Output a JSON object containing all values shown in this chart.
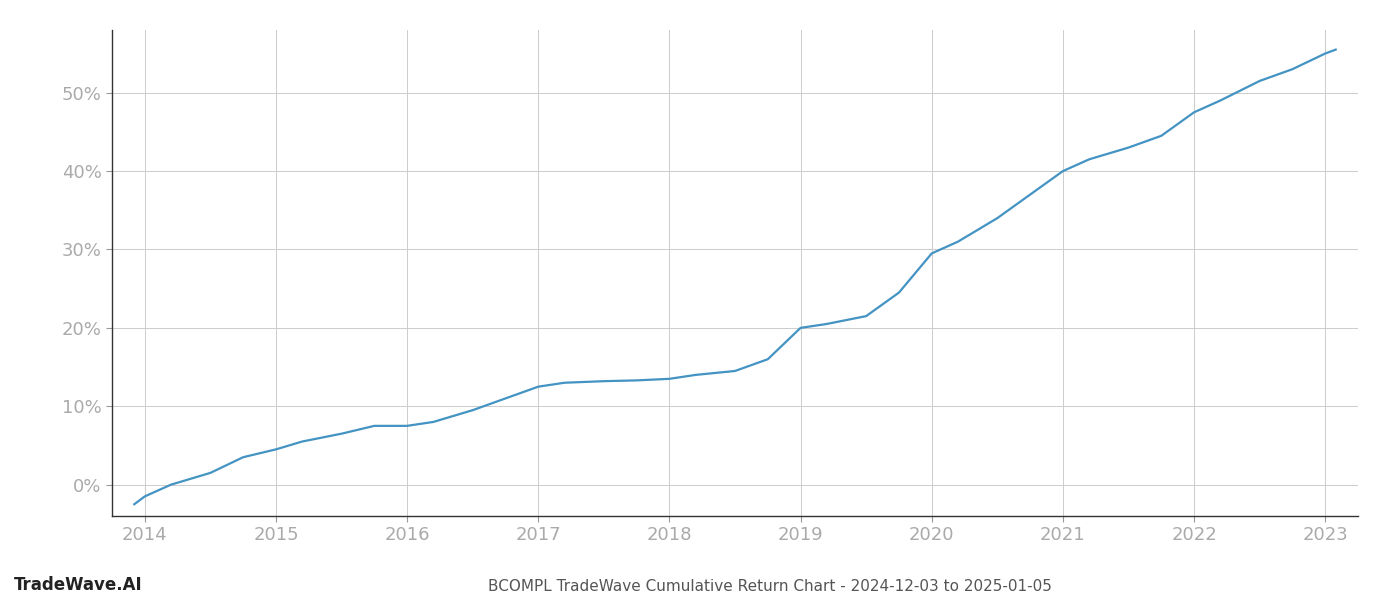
{
  "title": "BCOMPL TradeWave Cumulative Return Chart - 2024-12-03 to 2025-01-05",
  "watermark": "TradeWave.AI",
  "line_color": "#4393c3",
  "background_color": "#ffffff",
  "grid_color": "#cccccc",
  "x_values": [
    2013.92,
    2014.0,
    2014.2,
    2014.5,
    2014.75,
    2015.0,
    2015.2,
    2015.5,
    2015.75,
    2016.0,
    2016.2,
    2016.5,
    2016.75,
    2017.0,
    2017.2,
    2017.5,
    2017.75,
    2018.0,
    2018.2,
    2018.5,
    2018.75,
    2019.0,
    2019.2,
    2019.5,
    2019.75,
    2020.0,
    2020.2,
    2020.5,
    2020.75,
    2021.0,
    2021.2,
    2021.5,
    2021.75,
    2022.0,
    2022.2,
    2022.5,
    2022.75,
    2023.0,
    2023.08
  ],
  "y_values": [
    -2.5,
    -1.5,
    0.0,
    1.5,
    3.5,
    4.5,
    5.5,
    6.5,
    7.5,
    7.5,
    8.0,
    9.5,
    11.0,
    12.5,
    13.0,
    13.2,
    13.3,
    13.5,
    14.0,
    14.5,
    16.0,
    20.0,
    20.5,
    21.5,
    24.5,
    29.5,
    31.0,
    34.0,
    37.0,
    40.0,
    41.5,
    43.0,
    44.5,
    47.5,
    49.0,
    51.5,
    53.0,
    55.0,
    55.5
  ],
  "xlim": [
    2013.75,
    2023.25
  ],
  "ylim": [
    -4,
    58
  ],
  "yticks": [
    0,
    10,
    20,
    30,
    40,
    50
  ],
  "xticks": [
    2014,
    2015,
    2016,
    2017,
    2018,
    2019,
    2020,
    2021,
    2022,
    2023
  ],
  "tick_label_color": "#aaaaaa",
  "title_color": "#555555",
  "watermark_color": "#222222",
  "line_width": 1.6,
  "title_fontsize": 11,
  "tick_fontsize": 13,
  "watermark_fontsize": 12
}
